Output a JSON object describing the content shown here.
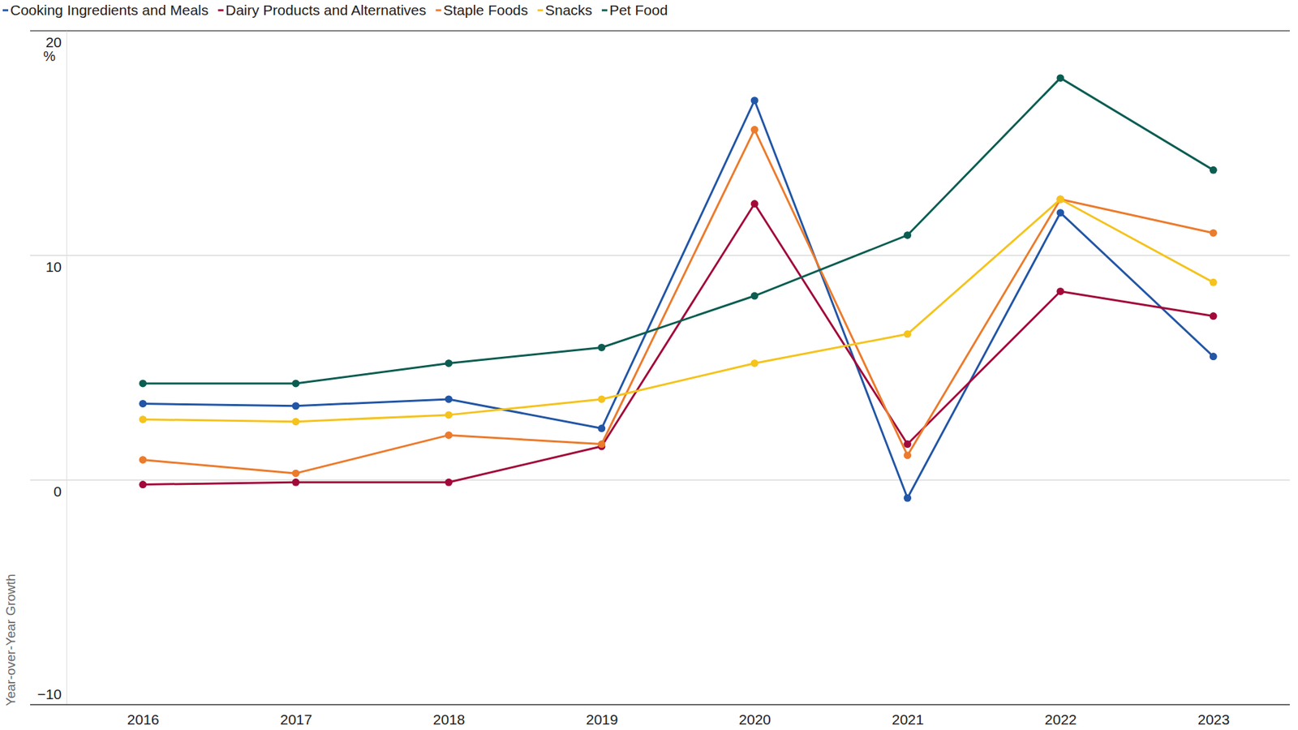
{
  "chart_data": {
    "type": "line",
    "y_label": "Year-over-Year Growth",
    "y_unit_label": "%",
    "categories": [
      "2016",
      "2017",
      "2018",
      "2019",
      "2020",
      "2021",
      "2022",
      "2023"
    ],
    "series": [
      {
        "name": "Cooking Ingredients and Meals",
        "color": "#2256a6",
        "values": [
          3.4,
          3.3,
          3.6,
          2.3,
          16.9,
          -0.8,
          11.9,
          5.5
        ]
      },
      {
        "name": "Dairy Products and Alternatives",
        "color": "#a2093a",
        "values": [
          -0.2,
          -0.1,
          -0.1,
          1.5,
          12.3,
          1.6,
          8.4,
          7.3
        ]
      },
      {
        "name": "Staple Foods",
        "color": "#ec7b2c",
        "values": [
          0.9,
          0.3,
          2.0,
          1.6,
          15.6,
          1.1,
          12.5,
          11.0
        ]
      },
      {
        "name": "Snacks",
        "color": "#f5c31c",
        "values": [
          2.7,
          2.6,
          2.9,
          3.6,
          5.2,
          6.5,
          12.5,
          8.8
        ]
      },
      {
        "name": "Pet Food",
        "color": "#0b5d52",
        "values": [
          4.3,
          4.3,
          5.2,
          5.9,
          8.2,
          10.9,
          17.9,
          13.8
        ]
      }
    ],
    "ylim": [
      -10,
      20
    ],
    "yticks": [
      {
        "value": -10,
        "label": "−10"
      },
      0,
      10,
      20
    ],
    "grid": true,
    "legend": "top",
    "marker": "circle"
  }
}
